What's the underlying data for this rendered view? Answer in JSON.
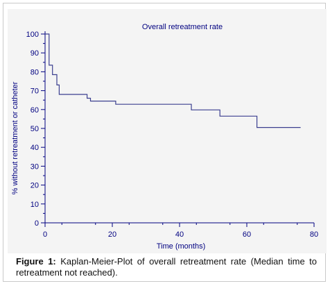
{
  "chart_data": {
    "type": "line",
    "title": "Overall retreatment rate",
    "xlabel": "Time (months)",
    "ylabel": "% without retreatment or catheter",
    "xlim": [
      0,
      80
    ],
    "ylim": [
      0,
      100
    ],
    "x_ticks": [
      0,
      20,
      40,
      60,
      80
    ],
    "y_ticks": [
      0,
      10,
      20,
      30,
      40,
      50,
      60,
      70,
      80,
      90,
      100
    ],
    "grid": false,
    "series": [
      {
        "step": true,
        "color": "#3b3f8f",
        "points": [
          [
            0,
            100
          ],
          [
            1.2,
            100
          ],
          [
            1.2,
            83.5
          ],
          [
            2.2,
            83.5
          ],
          [
            2.2,
            78.5
          ],
          [
            3.5,
            78.5
          ],
          [
            3.5,
            73
          ],
          [
            4.2,
            73
          ],
          [
            4.2,
            68
          ],
          [
            12.5,
            68
          ],
          [
            12.5,
            66
          ],
          [
            13.5,
            66
          ],
          [
            13.5,
            64.5
          ],
          [
            21,
            64.5
          ],
          [
            21,
            62.8
          ],
          [
            43.5,
            62.8
          ],
          [
            43.5,
            59.8
          ],
          [
            52,
            59.8
          ],
          [
            52,
            56.5
          ],
          [
            63,
            56.5
          ],
          [
            63,
            50.5
          ],
          [
            76,
            50.5
          ]
        ]
      }
    ]
  },
  "caption": {
    "label": "Figure 1:",
    "text": "Kaplan-Meier-Plot of overall retreatment rate (Median time to retreatment not reached)."
  }
}
